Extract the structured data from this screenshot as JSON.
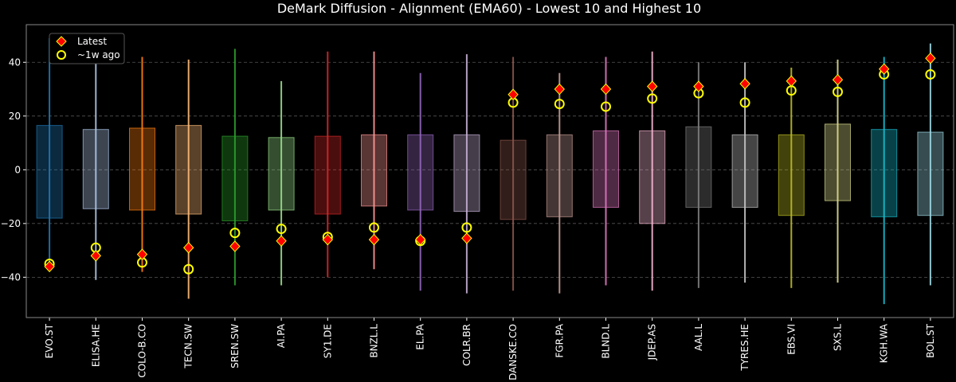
{
  "chart_data": {
    "type": "box-range",
    "title": "DeMark Diffusion - Alignment (EMA60) - Lowest 10 and Highest 10",
    "xlabel": "",
    "ylabel": "",
    "ylim": [
      -55,
      54
    ],
    "yticks": [
      -40,
      -20,
      0,
      20,
      40
    ],
    "grid": "horizontal-dashed",
    "legend_position": "top-left",
    "legend": [
      {
        "name": "Latest",
        "marker": "red-diamond",
        "color": "#ff0000"
      },
      {
        "name": "~1w ago",
        "marker": "yellow-open-circle",
        "color": "#ffff00"
      }
    ],
    "categories": [
      "EVO.ST",
      "ELISA.HE",
      "COLO-B.CO",
      "TECN.SW",
      "SREN.SW",
      "AI.PA",
      "SY1.DE",
      "BNZL.L",
      "EL.PA",
      "COLR.BR",
      "DANSKE.CO",
      "FGR.PA",
      "BLND.L",
      "JDEP.AS",
      "AAL.L",
      "TYRES.HE",
      "EBS.VI",
      "SXS.L",
      "KGH.WA",
      "BOL.ST"
    ],
    "colors": [
      "#1f77b4",
      "#aec7e8",
      "#ff7f0e",
      "#ffbb78",
      "#2ca02c",
      "#98df8a",
      "#d62728",
      "#ff9896",
      "#9467bd",
      "#c5b0d5",
      "#8c564b",
      "#c49c94",
      "#e377c2",
      "#f7b6d2",
      "#7f7f7f",
      "#c7c7c7",
      "#bcbd22",
      "#dbdb8d",
      "#17becf",
      "#9edae5"
    ],
    "whisker_low": [
      -37,
      -41,
      -38,
      -48,
      -43,
      -43,
      -40,
      -37,
      -45,
      -46,
      -45,
      -46,
      -43,
      -45,
      -44,
      -42,
      -44,
      -42,
      -50,
      -43
    ],
    "whisker_high": [
      49,
      46,
      42,
      41,
      45,
      33,
      44,
      44,
      36,
      43,
      42,
      36,
      42,
      44,
      40,
      40,
      38,
      41,
      42,
      47
    ],
    "box_low": [
      -18,
      -14.5,
      -15,
      -16.5,
      -19,
      -15,
      -16.5,
      -13.5,
      -15,
      -15.5,
      -18.5,
      -17.5,
      -14,
      -20,
      -14,
      -14,
      -17,
      -11.5,
      -17.5,
      -17
    ],
    "box_high": [
      16.5,
      15,
      15.5,
      16.5,
      12.5,
      12,
      12.5,
      13,
      13,
      13,
      11,
      13,
      14.5,
      14.5,
      16,
      13,
      13,
      17,
      15,
      14
    ],
    "latest": [
      -36,
      -32,
      -31.5,
      -29,
      -28.5,
      -26.5,
      -26,
      -26,
      -26,
      -25.5,
      28,
      30,
      30,
      31,
      31,
      32,
      33,
      33.5,
      37.5,
      41.5
    ],
    "week_ago": [
      -35,
      -29,
      -34.5,
      -37,
      -23.5,
      -22,
      -25,
      -21.5,
      -26.5,
      -21.5,
      25,
      24.5,
      23.5,
      26.5,
      28.5,
      25,
      29.5,
      29,
      35.5,
      35.5
    ]
  }
}
